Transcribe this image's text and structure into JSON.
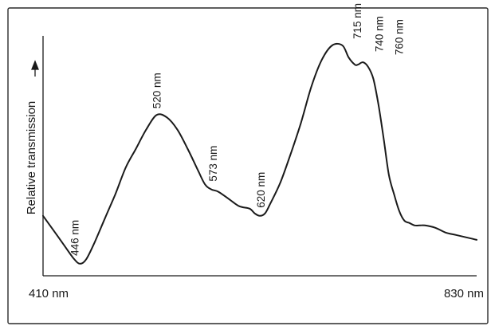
{
  "chart_data": {
    "type": "line",
    "title": "",
    "xlabel": "",
    "ylabel": "Relative transmission",
    "x_tick_labels": [
      "410 nm",
      "830 nm"
    ],
    "xlim": [
      410,
      830
    ],
    "ylim": [
      0,
      1
    ],
    "grid": false,
    "legend": "none",
    "line_color": "#1a1a1a",
    "series": [
      {
        "x": [
          410,
          420,
          430,
          440,
          446,
          452,
          460,
          470,
          480,
          490,
          500,
          510,
          520,
          530,
          540,
          550,
          560,
          567,
          573,
          580,
          590,
          600,
          610,
          615,
          620,
          625,
          630,
          640,
          650,
          660,
          670,
          680,
          690,
          700,
          706,
          712,
          715,
          720,
          725,
          730,
          735,
          740,
          745,
          750,
          755,
          760,
          765,
          770,
          775,
          780,
          790,
          800,
          810,
          820,
          830
        ],
        "y": [
          0.25,
          0.19,
          0.13,
          0.07,
          0.05,
          0.07,
          0.14,
          0.24,
          0.34,
          0.45,
          0.53,
          0.61,
          0.67,
          0.66,
          0.61,
          0.53,
          0.44,
          0.38,
          0.36,
          0.35,
          0.32,
          0.29,
          0.28,
          0.26,
          0.25,
          0.26,
          0.3,
          0.39,
          0.51,
          0.64,
          0.79,
          0.9,
          0.96,
          0.96,
          0.91,
          0.88,
          0.88,
          0.89,
          0.87,
          0.82,
          0.71,
          0.57,
          0.42,
          0.34,
          0.27,
          0.23,
          0.22,
          0.21,
          0.21,
          0.21,
          0.2,
          0.18,
          0.17,
          0.16,
          0.15
        ]
      }
    ],
    "annotations": [
      {
        "label": "446 nm",
        "x": 446,
        "y": 0.05
      },
      {
        "label": "520 nm",
        "x": 520,
        "y": 0.67
      },
      {
        "label": "573 nm",
        "x": 573,
        "y": 0.36
      },
      {
        "label": "620 nm",
        "x": 620,
        "y": 0.25
      },
      {
        "label": "715 nm",
        "x": 715,
        "y": 0.96
      },
      {
        "label": "740 nm",
        "x": 740,
        "y": 0.89
      },
      {
        "label": "760 nm",
        "x": 760,
        "y": 0.88
      }
    ]
  }
}
